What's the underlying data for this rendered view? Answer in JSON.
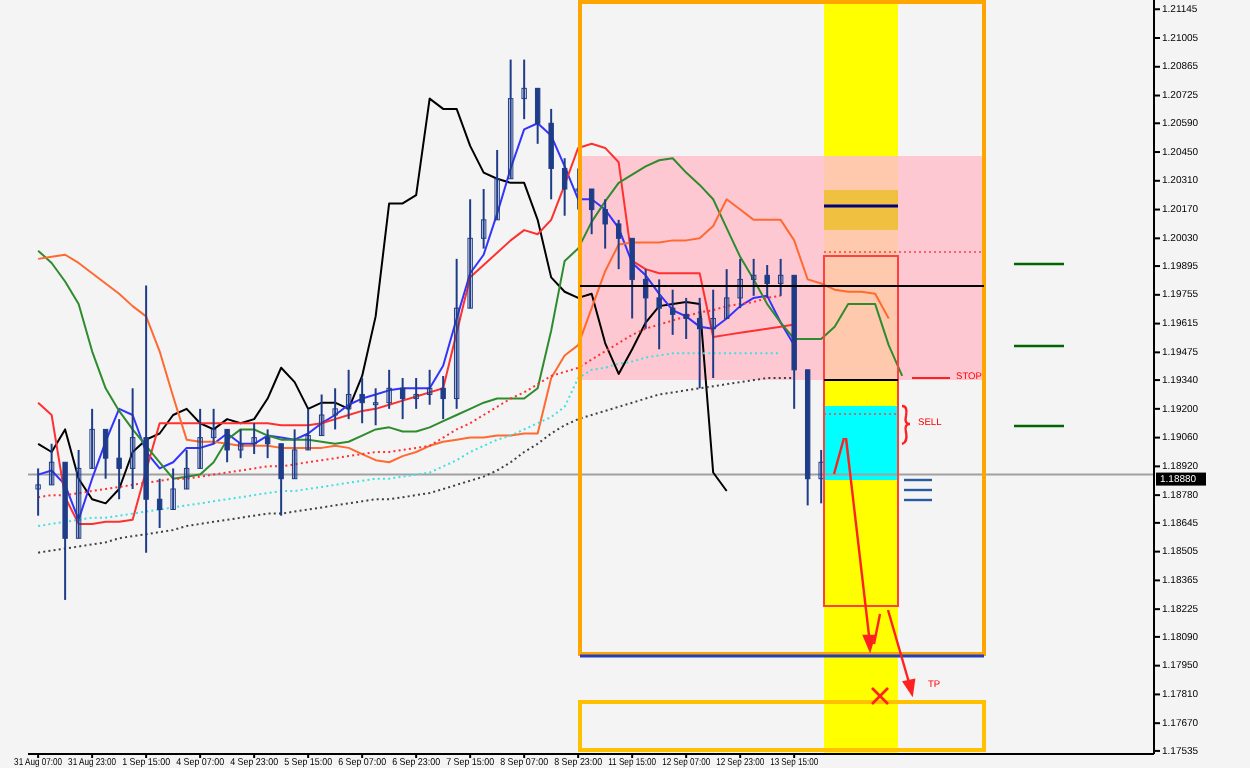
{
  "chart_data": {
    "type": "candlestick",
    "color": "#1f3c88",
    "categories": [
      "31 Aug 07:00",
      null,
      null,
      null,
      "31 Aug 23:00",
      null,
      null,
      null,
      "1 Sep 15:00",
      null,
      null,
      null,
      "4 Sep 07:00",
      null,
      null,
      null,
      "4 Sep 23:00",
      null,
      null,
      null,
      "5 Sep 15:00",
      null,
      null,
      null,
      "6 Sep 07:00",
      null,
      null,
      null,
      "6 Sep 23:00",
      null,
      null,
      null,
      "7 Sep 15:00",
      null,
      null,
      null,
      "8 Sep 07:00",
      null,
      null,
      null,
      "8 Sep 23:00",
      null,
      null,
      null,
      "11 Sep 15:00",
      null,
      null,
      null,
      "12 Sep 07:00",
      null,
      null,
      null,
      "12 Sep 23:00",
      null,
      null,
      null,
      "13 Sep 15:00",
      null,
      null,
      null,
      null,
      null,
      null,
      null,
      null,
      null,
      null,
      null,
      null,
      null,
      null,
      null,
      null,
      null,
      null,
      null,
      null,
      null,
      null,
      null,
      null,
      null,
      null
    ],
    "ohlc": [
      [
        1.1881,
        1.1891,
        1.1868,
        1.1883
      ],
      [
        1.1883,
        1.1903,
        1.1883,
        1.1894
      ],
      [
        1.1894,
        1.1894,
        1.1827,
        1.1857
      ],
      [
        1.1857,
        1.19,
        1.1857,
        1.1891
      ],
      [
        1.1891,
        1.192,
        1.1891,
        1.191
      ],
      [
        1.191,
        1.191,
        1.1886,
        1.1896
      ],
      [
        1.1896,
        1.1915,
        1.1876,
        1.1891
      ],
      [
        1.1891,
        1.193,
        1.1881,
        1.1906
      ],
      [
        1.1906,
        1.198,
        1.185,
        1.1876
      ],
      [
        1.1876,
        1.1886,
        1.1862,
        1.1871
      ],
      [
        1.1871,
        1.1891,
        1.1871,
        1.1881
      ],
      [
        1.1881,
        1.19,
        1.1881,
        1.1891
      ],
      [
        1.1891,
        1.192,
        1.1891,
        1.1906
      ],
      [
        1.1906,
        1.192,
        1.1903,
        1.191
      ],
      [
        1.191,
        1.191,
        1.1894,
        1.19
      ],
      [
        1.19,
        1.191,
        1.1896,
        1.1903
      ],
      [
        1.1903,
        1.1913,
        1.1898,
        1.1906
      ],
      [
        1.1906,
        1.191,
        1.1896,
        1.1903
      ],
      [
        1.1903,
        1.1903,
        1.1868,
        1.1886
      ],
      [
        1.1886,
        1.191,
        1.1886,
        1.19
      ],
      [
        1.19,
        1.192,
        1.19,
        1.1907
      ],
      [
        1.1907,
        1.1927,
        1.1907,
        1.1917
      ],
      [
        1.1917,
        1.193,
        1.191,
        1.192
      ],
      [
        1.192,
        1.1939,
        1.1915,
        1.1927
      ],
      [
        1.1927,
        1.1935,
        1.1913,
        1.1923
      ],
      [
        1.1923,
        1.193,
        1.1912,
        1.1923
      ],
      [
        1.1923,
        1.1939,
        1.192,
        1.193
      ],
      [
        1.193,
        1.1935,
        1.1915,
        1.1925
      ],
      [
        1.1925,
        1.1935,
        1.192,
        1.1927
      ],
      [
        1.1927,
        1.1939,
        1.1922,
        1.193
      ],
      [
        1.193,
        1.1936,
        1.1915,
        1.1925
      ],
      [
        1.1925,
        1.1993,
        1.192,
        1.1969
      ],
      [
        1.1969,
        1.2022,
        1.1969,
        1.2003
      ],
      [
        1.2003,
        1.2027,
        1.1998,
        1.2012
      ],
      [
        1.2012,
        1.2046,
        1.2012,
        1.2032
      ],
      [
        1.2032,
        1.209,
        1.2032,
        1.2071
      ],
      [
        1.2071,
        1.209,
        1.2061,
        1.2076
      ],
      [
        1.2076,
        1.2076,
        1.2049,
        1.2059
      ],
      [
        1.2059,
        1.2066,
        1.2022,
        1.2037
      ],
      [
        1.2037,
        1.2042,
        1.2014,
        1.2027
      ],
      [
        1.2027,
        1.2037,
        1.2017,
        1.2027
      ],
      [
        1.2027,
        1.2027,
        1.2005,
        1.2017
      ],
      [
        1.2017,
        1.2022,
        1.1998,
        1.201
      ],
      [
        1.201,
        1.2012,
        1.1988,
        1.2003
      ],
      [
        1.2003,
        1.2003,
        1.1964,
        1.1983
      ],
      [
        1.1983,
        1.1988,
        1.1959,
        1.1974
      ],
      [
        1.1974,
        1.1983,
        1.1949,
        1.1969
      ],
      [
        1.1969,
        1.1978,
        1.1956,
        1.1966
      ],
      [
        1.1966,
        1.1974,
        1.1954,
        1.1964
      ],
      [
        1.1964,
        1.1974,
        1.193,
        1.1959
      ],
      [
        1.1959,
        1.1978,
        1.1935,
        1.1964
      ],
      [
        1.1964,
        1.1988,
        1.1964,
        1.1974
      ],
      [
        1.1974,
        1.1993,
        1.1969,
        1.1983
      ],
      [
        1.1983,
        1.1993,
        1.1975,
        1.1985
      ],
      [
        1.1985,
        1.199,
        1.1974,
        1.1981
      ],
      [
        1.1981,
        1.1993,
        1.1975,
        1.1985
      ],
      [
        1.1985,
        1.1985,
        1.192,
        1.1939
      ],
      [
        1.1939,
        1.1939,
        1.1873,
        1.1886
      ],
      [
        1.1886,
        1.19,
        1.1874,
        1.1894
      ],
      null,
      null,
      null,
      null,
      null,
      null,
      null,
      null,
      null,
      null,
      null,
      null,
      null,
      null,
      null,
      null,
      null,
      null,
      null,
      null,
      null,
      null,
      null,
      null
    ],
    "series": [
      {
        "type": "line",
        "color": "#000000",
        "line_style": "solid",
        "values": [
          1.1903,
          1.1899,
          1.191,
          1.1886,
          1.1876,
          1.1874,
          1.1881,
          1.1899,
          1.1905,
          1.1908,
          1.1917,
          1.192,
          1.1913,
          1.191,
          1.1915,
          1.1913,
          1.1915,
          1.1925,
          1.194,
          1.1933,
          1.192,
          1.1923,
          1.1923,
          1.192,
          1.1936,
          1.1965,
          1.202,
          1.202,
          1.2024,
          1.2071,
          1.2066,
          1.2066,
          1.2048,
          1.2035,
          1.2032,
          1.203,
          1.203,
          1.2012,
          1.1984,
          1.1977,
          1.1974,
          1.1976,
          1.1952,
          1.1937,
          1.1949,
          1.1962,
          1.197,
          1.1971,
          1.1972,
          1.1971,
          1.1889,
          1.188,
          null,
          null,
          null,
          null,
          null,
          null,
          null,
          null,
          null,
          null,
          null,
          null,
          null,
          null,
          null,
          null,
          null,
          null,
          null,
          null,
          null,
          null,
          null,
          null,
          null,
          null,
          null,
          null,
          null,
          null,
          null
        ]
      },
      {
        "type": "line",
        "color": "#3333ff",
        "line_style": "solid",
        "values": [
          1.1888,
          1.189,
          1.1883,
          1.1866,
          1.1886,
          1.1904,
          1.192,
          1.1917,
          1.1899,
          1.1891,
          1.1894,
          1.1901,
          1.1901,
          1.1903,
          1.1908,
          1.1903,
          1.1903,
          1.1907,
          1.1906,
          1.1905,
          1.1908,
          1.1913,
          1.1917,
          1.1922,
          1.1925,
          1.1927,
          1.1929,
          1.193,
          1.193,
          1.193,
          1.1941,
          1.1964,
          1.1986,
          1.1995,
          1.2015,
          1.2037,
          1.2056,
          1.2059,
          1.2053,
          1.2038,
          1.2022,
          1.2022,
          1.2017,
          1.2008,
          1.1991,
          1.1985,
          1.1976,
          1.1968,
          1.1965,
          1.196,
          1.1959,
          1.1964,
          1.197,
          1.1974,
          1.1975,
          1.1962,
          1.1951,
          null,
          null,
          null,
          null,
          null,
          null,
          null,
          null,
          null,
          null,
          null,
          null,
          null,
          null,
          null,
          null,
          null,
          null,
          null,
          null,
          null,
          null,
          null,
          null,
          null,
          null
        ]
      },
      {
        "type": "line",
        "color": "#ff3030",
        "line_style": "solid",
        "values": [
          1.1923,
          1.1917,
          1.1877,
          1.1864,
          1.1864,
          1.1865,
          1.1865,
          1.1866,
          1.189,
          1.1913,
          1.1913,
          1.1913,
          1.1913,
          1.1913,
          1.1913,
          1.1913,
          1.1913,
          1.1913,
          1.1912,
          1.1912,
          1.1912,
          1.1913,
          1.1915,
          1.1917,
          1.1919,
          1.192,
          1.1922,
          1.1924,
          1.1926,
          1.1928,
          1.193,
          1.1957,
          1.1984,
          1.199,
          1.1996,
          1.2002,
          1.2007,
          1.2005,
          1.2012,
          1.2029,
          1.2047,
          1.2049,
          1.2047,
          1.204,
          1.1992,
          1.1988,
          1.1986,
          1.1986,
          1.1986,
          1.1986,
          1.1955,
          1.1956,
          1.1957,
          1.1958,
          1.1959,
          1.196,
          1.1961,
          null,
          null,
          null,
          null,
          null,
          null,
          null,
          null,
          null,
          null,
          null,
          null,
          null,
          null,
          null,
          null,
          null,
          null,
          null,
          null,
          null,
          null,
          null,
          null,
          null,
          null
        ]
      },
      {
        "type": "line",
        "color": "#2e8b2e",
        "line_style": "solid",
        "values": [
          1.1997,
          1.1991,
          1.1982,
          1.1971,
          1.1948,
          1.193,
          1.1919,
          1.191,
          1.1902,
          1.1894,
          1.1886,
          1.1887,
          1.1888,
          1.1894,
          1.1905,
          1.191,
          1.191,
          1.1907,
          1.1905,
          1.1905,
          1.1905,
          1.1904,
          1.1903,
          1.1904,
          1.1907,
          1.191,
          1.1911,
          1.1909,
          1.1909,
          1.1911,
          1.1914,
          1.1917,
          1.192,
          1.1923,
          1.1925,
          1.1925,
          1.1925,
          1.193,
          1.1958,
          1.1992,
          1.1998,
          1.2011,
          1.2021,
          1.203,
          1.2034,
          1.2038,
          1.2041,
          1.2042,
          1.2035,
          1.2029,
          1.2022,
          1.2008,
          1.1994,
          1.1983,
          1.1971,
          1.1962,
          1.1954,
          1.1954,
          1.1954,
          1.196,
          1.1971,
          1.1971,
          1.1971,
          1.1951,
          1.1936,
          null,
          null,
          null,
          null,
          null,
          null,
          null,
          null,
          null,
          null,
          null,
          null,
          null,
          null,
          null,
          null,
          null,
          null
        ]
      },
      {
        "type": "line",
        "color": "#ff6a30",
        "line_style": "solid",
        "values": [
          1.1993,
          1.1994,
          1.1995,
          1.1991,
          1.1986,
          1.1981,
          1.1976,
          1.197,
          1.1965,
          1.1948,
          1.1926,
          1.1905,
          1.1904,
          1.1904,
          1.1903,
          1.1902,
          1.1902,
          1.1902,
          1.1901,
          1.1901,
          1.1901,
          1.1901,
          1.1902,
          1.1901,
          1.1898,
          1.1895,
          1.1894,
          1.1897,
          1.1899,
          1.1902,
          1.1904,
          1.1905,
          1.1906,
          1.1906,
          1.1907,
          1.1907,
          1.1908,
          1.1908,
          1.1935,
          1.1946,
          1.1951,
          1.1969,
          1.1987,
          1.2,
          1.2001,
          1.2001,
          1.2001,
          1.2002,
          1.2002,
          1.2003,
          1.2009,
          1.2022,
          1.2017,
          1.2012,
          1.2012,
          1.2012,
          1.2002,
          1.1983,
          1.1981,
          1.1978,
          1.1977,
          1.1977,
          1.1976,
          1.1964,
          null,
          null,
          null,
          null,
          null,
          null,
          null,
          null,
          null,
          null,
          null,
          null,
          null,
          null,
          null,
          null,
          null,
          null,
          null
        ]
      },
      {
        "type": "line",
        "color": "#ff3030",
        "line_style": "dotted",
        "values": [
          1.1877,
          1.1878,
          1.1878,
          1.1879,
          1.188,
          1.1881,
          1.1882,
          1.1883,
          1.1884,
          1.1885,
          1.1886,
          1.1886,
          1.1887,
          1.1888,
          1.1889,
          1.189,
          1.1891,
          1.1892,
          1.1892,
          1.1893,
          1.1894,
          1.1895,
          1.1896,
          1.1897,
          1.1898,
          1.1899,
          1.1899,
          1.19,
          1.1901,
          1.1902,
          1.1906,
          1.191,
          1.1913,
          1.1917,
          1.1921,
          1.1925,
          1.1928,
          1.1932,
          1.1936,
          1.1938,
          1.194,
          1.1944,
          1.1948,
          1.1952,
          1.1956,
          1.1959,
          1.1961,
          1.1963,
          1.1965,
          1.1967,
          1.1968,
          1.197,
          1.1971,
          1.1972,
          1.1974,
          1.1975,
          null,
          null,
          null,
          null,
          null,
          null,
          null,
          null,
          null,
          null,
          null,
          null,
          null,
          null,
          null,
          null,
          null,
          null,
          null,
          null,
          null,
          null,
          null,
          null,
          null,
          null,
          null
        ]
      },
      {
        "type": "line",
        "color": "#40e0e0",
        "line_style": "dotted",
        "values": [
          1.1863,
          1.1864,
          1.1865,
          1.1866,
          1.1867,
          1.1867,
          1.1868,
          1.1869,
          1.187,
          1.1871,
          1.1872,
          1.1873,
          1.1874,
          1.1875,
          1.1876,
          1.1877,
          1.1878,
          1.1879,
          1.188,
          1.188,
          1.1881,
          1.1882,
          1.1883,
          1.1884,
          1.1885,
          1.1886,
          1.1886,
          1.1887,
          1.1888,
          1.1889,
          1.1892,
          1.1895,
          1.1899,
          1.1902,
          1.1905,
          1.1907,
          1.191,
          1.1913,
          1.1916,
          1.1921,
          1.1935,
          1.1939,
          1.194,
          1.1942,
          1.1943,
          1.1945,
          1.1946,
          1.1947,
          1.1947,
          1.1947,
          1.1947,
          1.1947,
          1.1947,
          1.1947,
          1.1947,
          1.1947,
          null,
          null,
          null,
          null,
          null,
          null,
          null,
          null,
          null,
          null,
          null,
          null,
          null,
          null,
          null,
          null,
          null,
          null,
          null,
          null,
          null,
          null,
          null,
          null,
          null,
          null,
          null
        ]
      },
      {
        "type": "line",
        "color": "#404040",
        "line_style": "dotted",
        "values": [
          1.185,
          1.1851,
          1.1852,
          1.1853,
          1.1854,
          1.1855,
          1.1857,
          1.1858,
          1.1859,
          1.186,
          1.1861,
          1.1863,
          1.1864,
          1.1865,
          1.1866,
          1.1867,
          1.1868,
          1.1869,
          1.1869,
          1.187,
          1.1871,
          1.1872,
          1.1873,
          1.1874,
          1.1875,
          1.1876,
          1.1876,
          1.1877,
          1.1878,
          1.1879,
          1.1881,
          1.1883,
          1.1885,
          1.1887,
          1.189,
          1.1894,
          1.1899,
          1.1903,
          1.1908,
          1.1912,
          1.1915,
          1.1917,
          1.1919,
          1.1921,
          1.1923,
          1.1925,
          1.1927,
          1.1928,
          1.1929,
          1.193,
          1.1931,
          1.1932,
          1.1933,
          1.1934,
          1.1935,
          1.1935,
          1.1935,
          null,
          null,
          null,
          null,
          null,
          null,
          null,
          null,
          null,
          null,
          null,
          null,
          null,
          null,
          null,
          null,
          null,
          null,
          null,
          null,
          null,
          null,
          null,
          null,
          null,
          null
        ]
      }
    ],
    "ylim": [
      1.1752,
      1.2119
    ],
    "yticks": [
      1.21145,
      1.21005,
      1.20865,
      1.20725,
      {
        "value": 1.2059,
        "label": "1.20590"
      },
      {
        "value": 1.2045,
        "label": "1.20450"
      },
      {
        "value": 1.2031,
        "label": "1.20310"
      },
      {
        "value": 1.2017,
        "label": "1.20170"
      },
      {
        "value": 1.2003,
        "label": "1.20030"
      },
      1.19895,
      1.19755,
      1.19615,
      1.19475,
      {
        "value": 1.1934,
        "label": "1.19340"
      },
      {
        "value": 1.192,
        "label": "1.19200"
      },
      {
        "value": 1.1906,
        "label": "1.19060"
      },
      {
        "value": 1.1892,
        "label": "1.18920"
      },
      {
        "value": 1.1878,
        "label": "1.18780"
      },
      1.18645,
      1.18505,
      1.18365,
      1.18225,
      {
        "value": 1.1809,
        "label": "1.18090"
      },
      {
        "value": 1.1795,
        "label": "1.17950"
      },
      {
        "value": 1.1781,
        "label": "1.17810"
      },
      {
        "value": 1.1767,
        "label": "1.17670"
      },
      1.17535
    ],
    "ref_lines": [
      {
        "axis": "y",
        "value": 1.1888,
        "label": "1.18880",
        "color": "#a0a0a0"
      }
    ],
    "annotations": [
      "STOP",
      "SELL",
      "TP"
    ]
  }
}
